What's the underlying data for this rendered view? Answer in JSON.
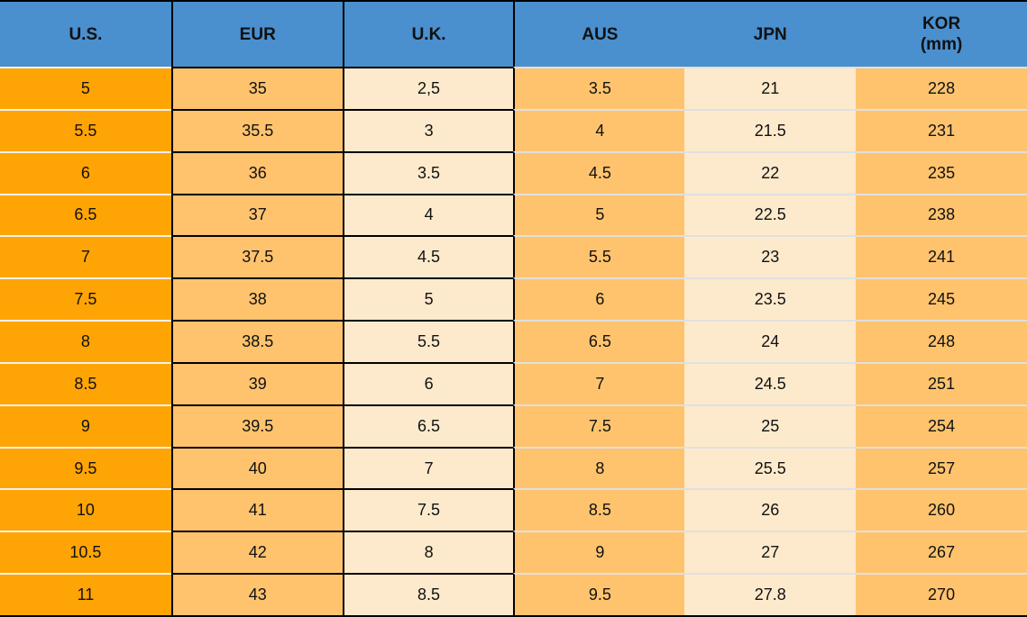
{
  "colors": {
    "header_blue": "#4A8FCE",
    "us_orange": "#FFA405",
    "mid_orange": "#FFC36E",
    "cream": "#FDEACC",
    "border_black": "#000000",
    "row_separator_left": "#F2F2F2",
    "row_separator_right": "#E0E0E0",
    "text": "#111111"
  },
  "table": {
    "columns": [
      {
        "key": "us",
        "label": "U.S."
      },
      {
        "key": "eur",
        "label": "EUR"
      },
      {
        "key": "uk",
        "label": "U.K."
      },
      {
        "key": "aus",
        "label": "AUS"
      },
      {
        "key": "jpn",
        "label": "JPN"
      },
      {
        "key": "kor",
        "label": "KOR",
        "sublabel": "(mm)"
      }
    ],
    "rows": [
      [
        "5",
        "35",
        "2,5",
        "3.5",
        "21",
        "228"
      ],
      [
        "5.5",
        "35.5",
        "3",
        "4",
        "21.5",
        "231"
      ],
      [
        "6",
        "36",
        "3.5",
        "4.5",
        "22",
        "235"
      ],
      [
        "6.5",
        "37",
        "4",
        "5",
        "22.5",
        "238"
      ],
      [
        "7",
        "37.5",
        "4.5",
        "5.5",
        "23",
        "241"
      ],
      [
        "7.5",
        "38",
        "5",
        "6",
        "23.5",
        "245"
      ],
      [
        "8",
        "38.5",
        "5.5",
        "6.5",
        "24",
        "248"
      ],
      [
        "8.5",
        "39",
        "6",
        "7",
        "24.5",
        "251"
      ],
      [
        "9",
        "39.5",
        "6.5",
        "7.5",
        "25",
        "254"
      ],
      [
        "9.5",
        "40",
        "7",
        "8",
        "25.5",
        "257"
      ],
      [
        "10",
        "41",
        "7.5",
        "8.5",
        "26",
        "260"
      ],
      [
        "10.5",
        "42",
        "8",
        "9",
        "27",
        "267"
      ],
      [
        "11",
        "43",
        "8.5",
        "9.5",
        "27.8",
        "270"
      ]
    ]
  },
  "chart_data": {
    "type": "table",
    "title": "",
    "columns": [
      "U.S.",
      "EUR",
      "U.K.",
      "AUS",
      "JPN",
      "KOR (mm)"
    ],
    "rows": [
      [
        "5",
        "35",
        "2,5",
        "3.5",
        "21",
        "228"
      ],
      [
        "5.5",
        "35.5",
        "3",
        "4",
        "21.5",
        "231"
      ],
      [
        "6",
        "36",
        "3.5",
        "4.5",
        "22",
        "235"
      ],
      [
        "6.5",
        "37",
        "4",
        "5",
        "22.5",
        "238"
      ],
      [
        "7",
        "37.5",
        "4.5",
        "5.5",
        "23",
        "241"
      ],
      [
        "7.5",
        "38",
        "5",
        "6",
        "23.5",
        "245"
      ],
      [
        "8",
        "38.5",
        "5.5",
        "6.5",
        "24",
        "248"
      ],
      [
        "8.5",
        "39",
        "6",
        "7",
        "24.5",
        "251"
      ],
      [
        "9",
        "39.5",
        "6.5",
        "7.5",
        "25",
        "254"
      ],
      [
        "9.5",
        "40",
        "7",
        "8",
        "25.5",
        "257"
      ],
      [
        "10",
        "41",
        "7.5",
        "8.5",
        "26",
        "260"
      ],
      [
        "10.5",
        "42",
        "8",
        "9",
        "27",
        "267"
      ],
      [
        "11",
        "43",
        "8.5",
        "9.5",
        "27.8",
        "270"
      ]
    ],
    "layout": {
      "header_background": "#4A8FCE",
      "column_backgrounds": [
        "#FFA405",
        "#FFC36E",
        "#FDEACC",
        "#FFC36E",
        "#FDEACC",
        "#FFC36E"
      ],
      "black_grid_columns": [
        "EUR",
        "U.K."
      ],
      "grid": "horizontal separators all rows; black verticals between U.S./EUR, EUR/U.K., U.K./AUS"
    }
  }
}
